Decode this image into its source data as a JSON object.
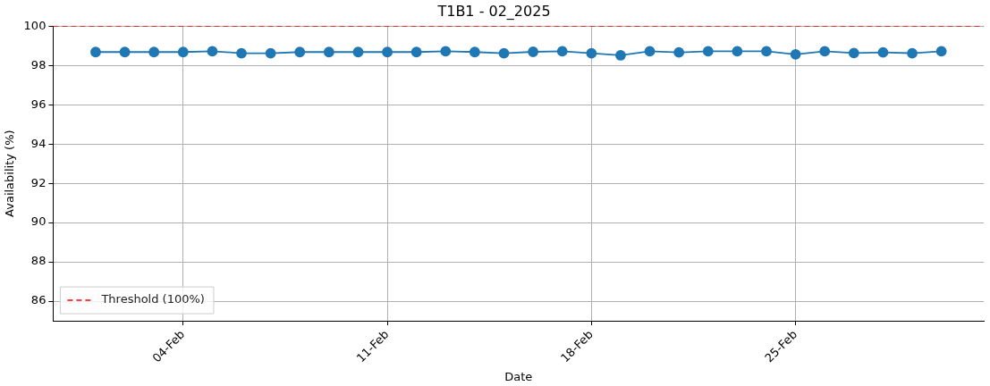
{
  "chart_data": {
    "type": "line",
    "title": "T1B1 - 02_2025",
    "xlabel": "Date",
    "ylabel": "Availability (%)",
    "x": [
      "2025-02-01",
      "2025-02-02",
      "2025-02-03",
      "2025-02-04",
      "2025-02-05",
      "2025-02-06",
      "2025-02-07",
      "2025-02-08",
      "2025-02-09",
      "2025-02-10",
      "2025-02-11",
      "2025-02-12",
      "2025-02-13",
      "2025-02-14",
      "2025-02-15",
      "2025-02-16",
      "2025-02-17",
      "2025-02-18",
      "2025-02-19",
      "2025-02-20",
      "2025-02-21",
      "2025-02-22",
      "2025-02-23",
      "2025-02-24",
      "2025-02-25",
      "2025-02-26",
      "2025-02-27",
      "2025-02-28",
      "2025-03-01",
      "2025-03-02"
    ],
    "series": [
      {
        "color": "#1f77b4",
        "values": [
          98.68,
          98.68,
          98.68,
          98.68,
          98.72,
          98.62,
          98.62,
          98.68,
          98.68,
          98.68,
          98.68,
          98.68,
          98.72,
          98.68,
          98.62,
          98.69,
          98.72,
          98.62,
          98.51,
          98.72,
          98.66,
          98.72,
          98.72,
          98.72,
          98.56,
          98.72,
          98.63,
          98.66,
          98.62,
          98.72
        ]
      }
    ],
    "xlim": [
      "2025-01-30T13:00",
      "2025-03-03T11:00"
    ],
    "xticks": [
      {
        "value": "2025-02-04",
        "label": "04-Feb"
      },
      {
        "value": "2025-02-11",
        "label": "11-Feb"
      },
      {
        "value": "2025-02-18",
        "label": "18-Feb"
      },
      {
        "value": "2025-02-25",
        "label": "25-Feb"
      }
    ],
    "ylim": [
      85,
      100
    ],
    "yticks": [
      86,
      88,
      90,
      92,
      94,
      96,
      98,
      100
    ],
    "ref_lines": [
      {
        "axis": "y",
        "value": 100,
        "label": "Threshold (100%)",
        "color": "#ff0000",
        "line_style": "dashed"
      }
    ],
    "grid": true,
    "legend": "bottom left",
    "marker": "circle",
    "line_style": "solid"
  }
}
